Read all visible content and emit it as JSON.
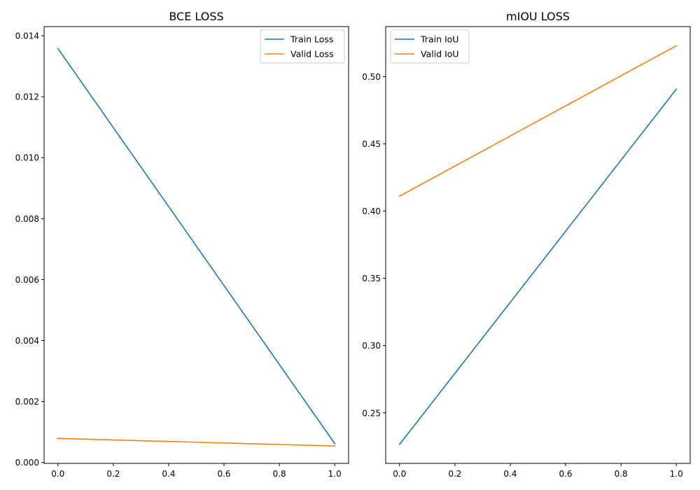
{
  "chart_data": [
    {
      "type": "line",
      "title": "BCE LOSS",
      "xlabel": "",
      "ylabel": "",
      "x": [
        0,
        1
      ],
      "xlim": [
        -0.05,
        1.05
      ],
      "ylim": [
        -3e-05,
        0.0143
      ],
      "xticks": [
        0.0,
        0.2,
        0.4,
        0.6,
        0.8,
        1.0
      ],
      "xtick_labels": [
        "0.0",
        "0.2",
        "0.4",
        "0.6",
        "0.8",
        "1.0"
      ],
      "yticks": [
        0.0,
        0.002,
        0.004,
        0.006,
        0.008,
        0.01,
        0.012,
        0.014
      ],
      "ytick_labels": [
        "0.000",
        "0.002",
        "0.004",
        "0.006",
        "0.008",
        "0.010",
        "0.012",
        "0.014"
      ],
      "grid": false,
      "legend_position": "top-right",
      "series": [
        {
          "name": "Train Loss",
          "values": [
            0.01358,
            0.00062
          ],
          "color": "#1f77b4"
        },
        {
          "name": "Valid Loss",
          "values": [
            0.00079,
            0.00054
          ],
          "color": "#ff7f0e"
        }
      ]
    },
    {
      "type": "line",
      "title": "mIOU LOSS",
      "xlabel": "",
      "ylabel": "",
      "x": [
        0,
        1
      ],
      "xlim": [
        -0.05,
        1.05
      ],
      "ylim": [
        0.2124,
        0.5372
      ],
      "xticks": [
        0.0,
        0.2,
        0.4,
        0.6,
        0.8,
        1.0
      ],
      "xtick_labels": [
        "0.0",
        "0.2",
        "0.4",
        "0.6",
        "0.8",
        "1.0"
      ],
      "yticks": [
        0.25,
        0.3,
        0.35,
        0.4,
        0.45,
        0.5
      ],
      "ytick_labels": [
        "0.25",
        "0.30",
        "0.35",
        "0.40",
        "0.45",
        "0.50"
      ],
      "grid": false,
      "legend_position": "top-left",
      "series": [
        {
          "name": "Train IoU",
          "values": [
            0.2265,
            0.4907
          ],
          "color": "#1f77b4"
        },
        {
          "name": "Valid IoU",
          "values": [
            0.4111,
            0.523
          ],
          "color": "#ff7f0e"
        }
      ]
    }
  ]
}
